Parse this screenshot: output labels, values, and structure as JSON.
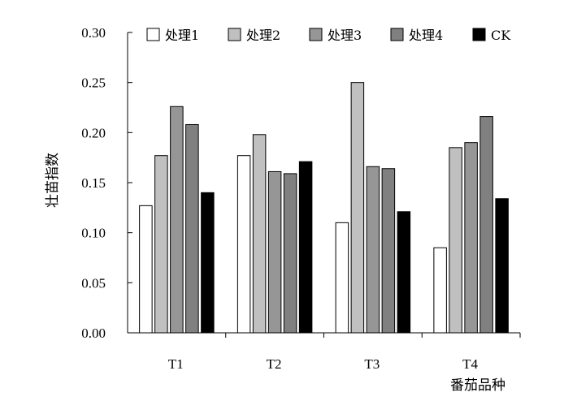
{
  "chart_data": {
    "type": "bar",
    "title": "",
    "xlabel": "番茄品种",
    "ylabel": "壮苗指数",
    "categories": [
      "T1",
      "T2",
      "T3",
      "T4"
    ],
    "ylim": [
      0,
      0.3
    ],
    "yticks": [
      "0.00",
      "0.05",
      "0.10",
      "0.15",
      "0.20",
      "0.25",
      "0.30"
    ],
    "grid": false,
    "legend_position": "top",
    "series": [
      {
        "name": "处理1",
        "color": "#ffffff",
        "values": [
          0.127,
          0.177,
          0.11,
          0.085
        ]
      },
      {
        "name": "处理2",
        "color": "#c0c0c0",
        "values": [
          0.177,
          0.198,
          0.25,
          0.185
        ]
      },
      {
        "name": "处理3",
        "color": "#969696",
        "values": [
          0.226,
          0.161,
          0.166,
          0.19
        ]
      },
      {
        "name": "处理4",
        "color": "#808080",
        "values": [
          0.208,
          0.159,
          0.164,
          0.216
        ]
      },
      {
        "name": "CK",
        "color": "#000000",
        "values": [
          0.14,
          0.171,
          0.121,
          0.134
        ]
      }
    ]
  }
}
